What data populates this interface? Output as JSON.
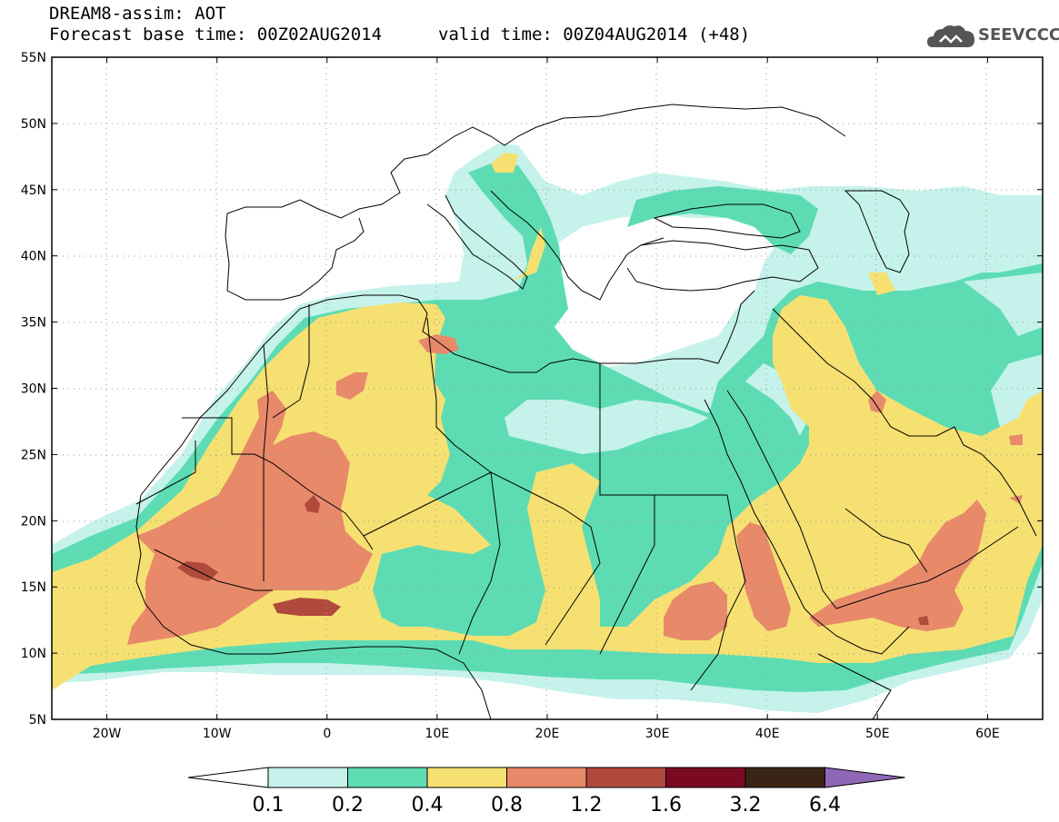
{
  "header": {
    "line1": "DREAM8-assim: AOT",
    "line2_left": "Forecast base time: 00Z02AUG2014",
    "line2_right": "valid time: 00Z04AUG2014 (+48)"
  },
  "logo": {
    "text": "SEEVCCC",
    "icon": "cloud-icon"
  },
  "map": {
    "lat_labels": [
      "55N",
      "50N",
      "45N",
      "40N",
      "35N",
      "30N",
      "25N",
      "20N",
      "15N",
      "10N",
      "5N"
    ],
    "lon_labels": [
      "20W",
      "10W",
      "0",
      "10E",
      "20E",
      "30E",
      "40E",
      "50E",
      "60E"
    ],
    "lat_range": [
      5,
      55
    ],
    "lon_range": [
      -25,
      65
    ],
    "grid": "dotted"
  },
  "legend": {
    "boundaries": [
      "0.1",
      "0.2",
      "0.4",
      "0.8",
      "1.2",
      "1.6",
      "3.2",
      "6.4"
    ],
    "colors": [
      "#c5f2ea",
      "#5ddcb4",
      "#f6e072",
      "#e8896a",
      "#b04a3c",
      "#7a0a22",
      "#3a2416"
    ],
    "overflow_color": "#8f67b6",
    "underflow_color": "#ffffff"
  },
  "colors": {
    "c1": "#c5f2ea",
    "c2": "#5ddcb4",
    "c3": "#f6e072",
    "c4": "#e8896a",
    "c5": "#b04a3c"
  }
}
